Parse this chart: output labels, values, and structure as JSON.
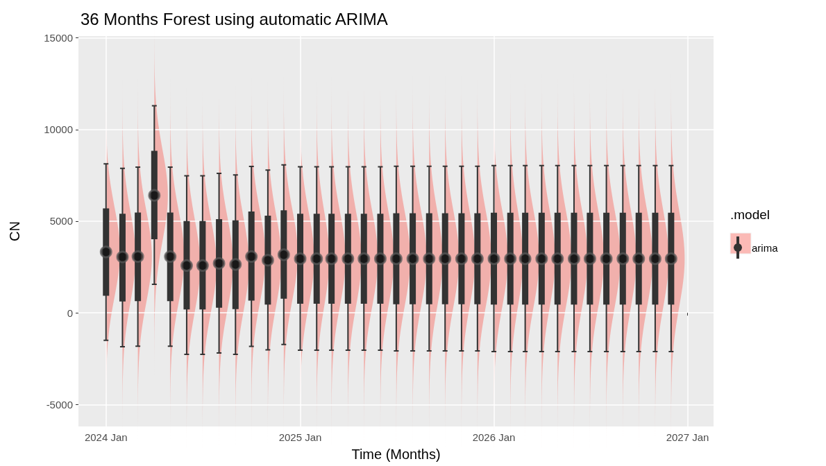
{
  "chart_data": {
    "type": "box",
    "title": "36 Months Forest using automatic ARIMA",
    "xlabel": "Time (Months)",
    "ylabel": "CN",
    "legend_title": ".model",
    "legend": "right",
    "grid": true,
    "marker": "circle",
    "x": [
      "2024-01",
      "2024-02",
      "2024-03",
      "2024-04",
      "2024-05",
      "2024-06",
      "2024-07",
      "2024-08",
      "2024-09",
      "2024-10",
      "2024-11",
      "2024-12",
      "2025-01",
      "2025-02",
      "2025-03",
      "2025-04",
      "2025-05",
      "2025-06",
      "2025-07",
      "2025-08",
      "2025-09",
      "2025-10",
      "2025-11",
      "2025-12",
      "2026-01",
      "2026-02",
      "2026-03",
      "2026-04",
      "2026-05",
      "2026-06",
      "2026-07",
      "2026-08",
      "2026-09",
      "2026-10",
      "2026-11",
      "2026-12"
    ],
    "xlim": [
      "2023-11-10",
      "2027-02-19"
    ],
    "xticks": [
      {
        "value": "2024-01-01",
        "label": "2024 Jan"
      },
      {
        "value": "2025-01-01",
        "label": "2025 Jan"
      },
      {
        "value": "2026-01-01",
        "label": "2026 Jan"
      },
      {
        "value": "2027-01-01",
        "label": "2027 Jan"
      }
    ],
    "ylim": [
      -6200,
      15100
    ],
    "yticks": [
      -5000,
      0,
      5000,
      10000,
      15000
    ],
    "series": [
      {
        "name": "arima",
        "color": "#333333",
        "boxes": [
          {
            "low": -1500,
            "q1": 970,
            "median": 3320,
            "q3": 5660,
            "high": 8130
          },
          {
            "low": -1850,
            "q1": 660,
            "median": 3050,
            "q3": 5370,
            "high": 7880
          },
          {
            "low": -1820,
            "q1": 680,
            "median": 3070,
            "q3": 5430,
            "high": 7950
          },
          {
            "low": 1560,
            "q1": 4050,
            "median": 6410,
            "q3": 8800,
            "high": 11300
          },
          {
            "low": -1820,
            "q1": 680,
            "median": 3070,
            "q3": 5430,
            "high": 7950
          },
          {
            "low": -2270,
            "q1": 220,
            "median": 2580,
            "q3": 4970,
            "high": 7480
          },
          {
            "low": -2270,
            "q1": 220,
            "median": 2580,
            "q3": 4970,
            "high": 7480
          },
          {
            "low": -2190,
            "q1": 320,
            "median": 2700,
            "q3": 5070,
            "high": 7610
          },
          {
            "low": -2270,
            "q1": 240,
            "median": 2640,
            "q3": 5010,
            "high": 7520
          },
          {
            "low": -1830,
            "q1": 700,
            "median": 3070,
            "q3": 5490,
            "high": 7990
          },
          {
            "low": -2020,
            "q1": 490,
            "median": 2870,
            "q3": 5260,
            "high": 7790
          },
          {
            "low": -1730,
            "q1": 810,
            "median": 3170,
            "q3": 5560,
            "high": 8070
          },
          {
            "low": -2040,
            "q1": 530,
            "median": 2950,
            "q3": 5370,
            "high": 7970
          },
          {
            "low": -2040,
            "q1": 530,
            "median": 2950,
            "q3": 5370,
            "high": 7970
          },
          {
            "low": -2040,
            "q1": 530,
            "median": 2950,
            "q3": 5370,
            "high": 7970
          },
          {
            "low": -2040,
            "q1": 530,
            "median": 2950,
            "q3": 5370,
            "high": 7970
          },
          {
            "low": -2040,
            "q1": 530,
            "median": 2950,
            "q3": 5370,
            "high": 7970
          },
          {
            "low": -2040,
            "q1": 530,
            "median": 2950,
            "q3": 5370,
            "high": 7970
          },
          {
            "low": -2080,
            "q1": 510,
            "median": 2950,
            "q3": 5400,
            "high": 8000
          },
          {
            "low": -2080,
            "q1": 510,
            "median": 2950,
            "q3": 5400,
            "high": 8000
          },
          {
            "low": -2080,
            "q1": 510,
            "median": 2950,
            "q3": 5400,
            "high": 8000
          },
          {
            "low": -2080,
            "q1": 510,
            "median": 2950,
            "q3": 5400,
            "high": 8000
          },
          {
            "low": -2080,
            "q1": 510,
            "median": 2950,
            "q3": 5400,
            "high": 8000
          },
          {
            "low": -2080,
            "q1": 510,
            "median": 2950,
            "q3": 5400,
            "high": 8000
          },
          {
            "low": -2110,
            "q1": 490,
            "median": 2950,
            "q3": 5420,
            "high": 8030
          },
          {
            "low": -2110,
            "q1": 490,
            "median": 2950,
            "q3": 5420,
            "high": 8030
          },
          {
            "low": -2110,
            "q1": 490,
            "median": 2950,
            "q3": 5420,
            "high": 8030
          },
          {
            "low": -2110,
            "q1": 490,
            "median": 2950,
            "q3": 5420,
            "high": 8030
          },
          {
            "low": -2110,
            "q1": 490,
            "median": 2950,
            "q3": 5420,
            "high": 8030
          },
          {
            "low": -2110,
            "q1": 490,
            "median": 2950,
            "q3": 5420,
            "high": 8030
          },
          {
            "low": -2110,
            "q1": 490,
            "median": 2950,
            "q3": 5420,
            "high": 8030
          },
          {
            "low": -2110,
            "q1": 490,
            "median": 2950,
            "q3": 5420,
            "high": 8030
          },
          {
            "low": -2110,
            "q1": 490,
            "median": 2950,
            "q3": 5420,
            "high": 8030
          },
          {
            "low": -2110,
            "q1": 490,
            "median": 2950,
            "q3": 5420,
            "high": 8030
          },
          {
            "low": -2110,
            "q1": 490,
            "median": 2950,
            "q3": 5420,
            "high": 8030
          },
          {
            "low": -2110,
            "q1": 490,
            "median": 2950,
            "q3": 5420,
            "high": 8030
          }
        ]
      },
      {
        "type": "scatter",
        "color": "#111111",
        "x": [
          "2024-01",
          "2024-02",
          "2024-03",
          "2024-04",
          "2024-05",
          "2024-06",
          "2024-07",
          "2024-08",
          "2024-09",
          "2024-10",
          "2024-11",
          "2024-12",
          "2025-01",
          "2025-02",
          "2025-03",
          "2025-04",
          "2025-05",
          "2025-06",
          "2025-07",
          "2025-08",
          "2025-09",
          "2025-10",
          "2025-11",
          "2025-12",
          "2026-01",
          "2026-02",
          "2026-03",
          "2026-04",
          "2026-05",
          "2026-06",
          "2026-07",
          "2026-08",
          "2026-09",
          "2026-10",
          "2026-11",
          "2026-12"
        ],
        "values": [
          3320,
          3050,
          3070,
          6410,
          3070,
          2580,
          2580,
          2700,
          2640,
          3070,
          2870,
          3170,
          2950,
          2950,
          2950,
          2950,
          2950,
          2950,
          2950,
          2950,
          2950,
          2950,
          2950,
          2950,
          2950,
          2950,
          2950,
          2950,
          2950,
          2950,
          2950,
          2950,
          2950,
          2950,
          2950,
          2950
        ]
      }
    ]
  }
}
